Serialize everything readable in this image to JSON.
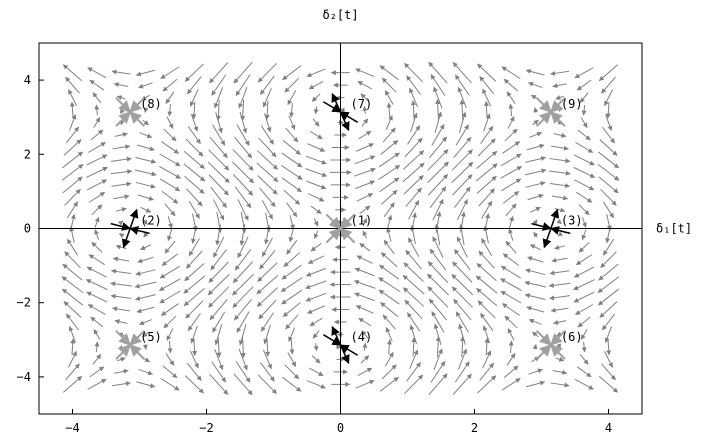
{
  "chart_data": {
    "type": "vector-field",
    "xlabel": "δ₁[t]",
    "ylabel": "δ₂[t]",
    "xlim": [
      -4.5,
      4.5
    ],
    "ylim": [
      -5,
      5
    ],
    "x_ticks": [
      -4,
      -2,
      0,
      2,
      4
    ],
    "y_ticks": [
      -4,
      -2,
      0,
      2,
      4
    ],
    "x_tick_labels": [
      "−4",
      "−2",
      "0",
      "2",
      "4"
    ],
    "y_tick_labels": [
      "−4",
      "−2",
      "0",
      "2",
      "4"
    ],
    "grid": false,
    "axes_through_origin": true,
    "field": {
      "formula": "dδ1 = sin(δ2), dδ2 = sin(δ1)",
      "x_range": [
        -4.0,
        4.0
      ],
      "y_range": [
        -4.2,
        4.2
      ],
      "nx": 23,
      "ny": 26,
      "color": "#808080"
    },
    "equilibria": [
      {
        "label": "(1)",
        "x": 0,
        "y": 0,
        "kind": "stable",
        "color": "#a0a0a0"
      },
      {
        "label": "(2)",
        "x": -3.14,
        "y": 0,
        "kind": "saddle",
        "color": "#000000"
      },
      {
        "label": "(3)",
        "x": 3.14,
        "y": 0,
        "kind": "saddle",
        "color": "#000000"
      },
      {
        "label": "(4)",
        "x": 0,
        "y": -3.14,
        "kind": "saddle",
        "color": "#000000"
      },
      {
        "label": "(5)",
        "x": -3.14,
        "y": -3.14,
        "kind": "stable",
        "color": "#a0a0a0"
      },
      {
        "label": "(6)",
        "x": 3.14,
        "y": -3.14,
        "kind": "stable",
        "color": "#a0a0a0"
      },
      {
        "label": "(7)",
        "x": 0,
        "y": 3.14,
        "kind": "saddle",
        "color": "#000000"
      },
      {
        "label": "(8)",
        "x": -3.14,
        "y": 3.14,
        "kind": "stable",
        "color": "#a0a0a0"
      },
      {
        "label": "(9)",
        "x": 3.14,
        "y": 3.14,
        "kind": "stable",
        "color": "#a0a0a0"
      }
    ]
  }
}
